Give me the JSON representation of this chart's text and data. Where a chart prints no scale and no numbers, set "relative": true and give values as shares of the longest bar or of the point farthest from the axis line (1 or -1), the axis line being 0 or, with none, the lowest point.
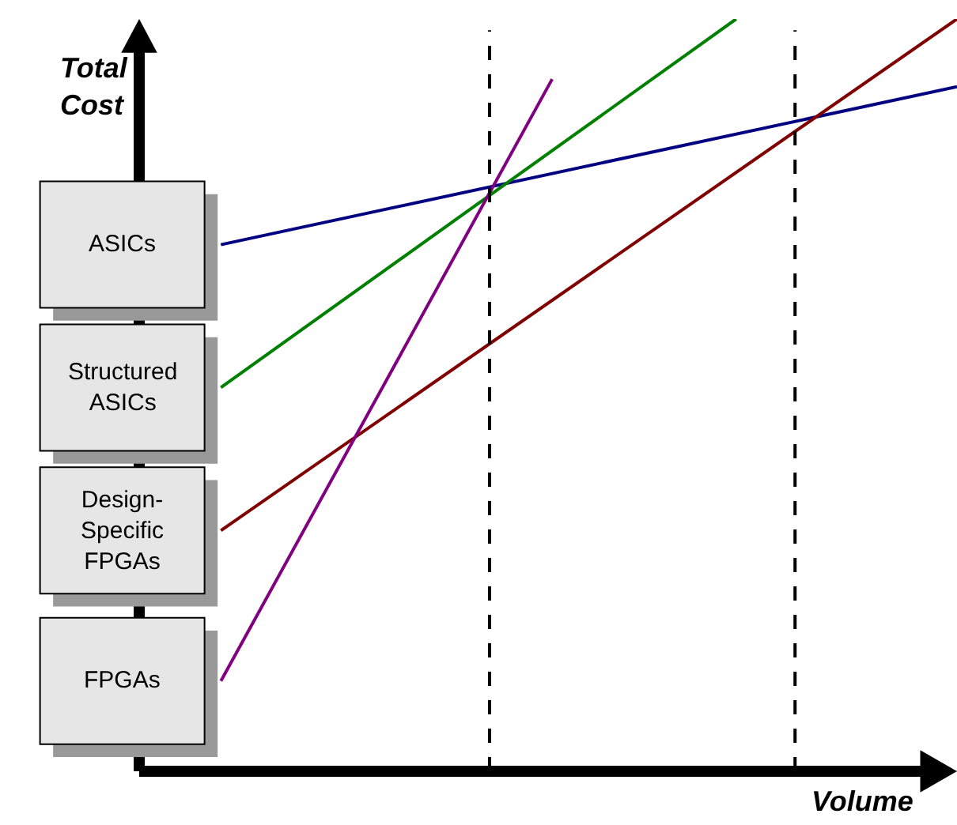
{
  "chart_data": {
    "type": "line",
    "relative": true,
    "ylabel": "Total Cost",
    "xlabel": "Volume",
    "legend": false,
    "marker": "none",
    "line_style": "solid",
    "categories": [
      null,
      null,
      null,
      null,
      null,
      null,
      null,
      null,
      null,
      null,
      null,
      null,
      null,
      null,
      null,
      null,
      null,
      null,
      null,
      null,
      null
    ],
    "series": [
      {
        "name": "ASICs",
        "color": "#000080",
        "values": [
          0.7,
          null,
          null,
          null,
          null,
          null,
          null,
          null,
          null,
          null,
          null,
          null,
          null,
          null,
          null,
          null,
          null,
          null,
          null,
          null,
          0.91
        ]
      },
      {
        "name": "Structured ASICs",
        "color": "#008000",
        "values": [
          0.51,
          null,
          null,
          null,
          null,
          null,
          null,
          null,
          null,
          null,
          null,
          null,
          null,
          null,
          1.0,
          null,
          null,
          null,
          null,
          null,
          null
        ]
      },
      {
        "name": "Design-Specific FPGAs",
        "color": "#800000",
        "values": [
          0.32,
          null,
          null,
          null,
          null,
          null,
          null,
          null,
          null,
          null,
          null,
          null,
          null,
          null,
          null,
          null,
          null,
          null,
          null,
          null,
          1.0
        ]
      },
      {
        "name": "FPGAs",
        "color": "#800080",
        "values": [
          0.12,
          null,
          null,
          null,
          null,
          null,
          null,
          null,
          null,
          0.92,
          null,
          null,
          null,
          null,
          null,
          null,
          null,
          null,
          null,
          null,
          null
        ]
      }
    ]
  }
}
